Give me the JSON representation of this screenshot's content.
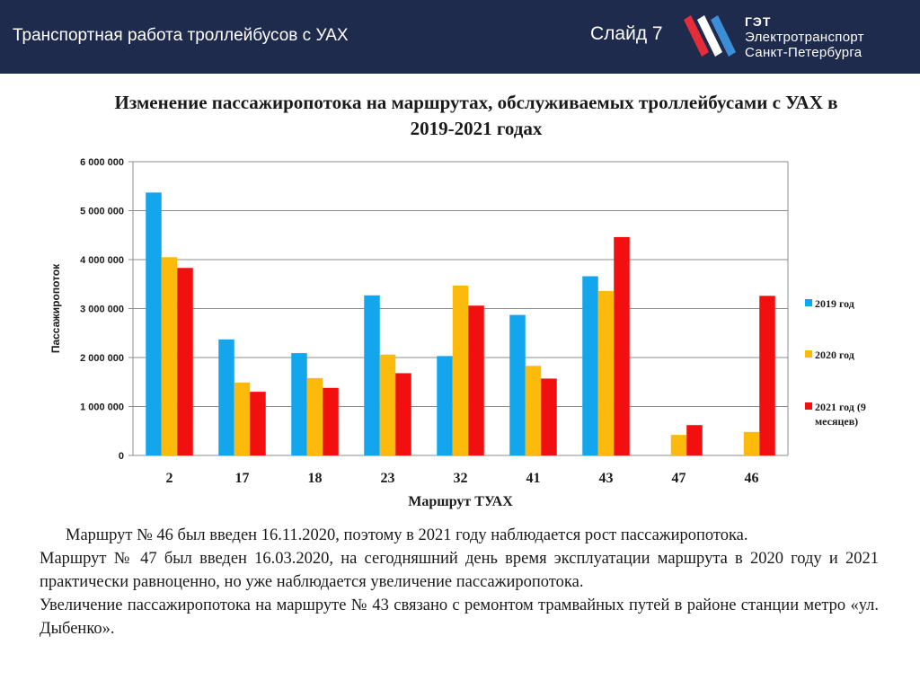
{
  "header": {
    "title": "Транспортная работа троллейбусов с УАХ",
    "slide_label": "Слайд 7",
    "logo": {
      "line1": "ГЭТ",
      "line2": "Электротранспорт",
      "line3": "Санкт-Петербурга",
      "colors": [
        "#e52d3a",
        "#ffffff",
        "#3c8fd6"
      ]
    },
    "background": "#1f2b4d"
  },
  "chart_data": {
    "type": "bar",
    "title": "Изменение пассажиропотока на маршрутах, обслуживаемых троллейбусами с УАХ в 2019-2021 годах",
    "xlabel": "Маршрут ТУАХ",
    "ylabel": "Пассажиропоток",
    "categories": [
      "2",
      "17",
      "18",
      "23",
      "32",
      "41",
      "43",
      "47",
      "46"
    ],
    "ylim": [
      0,
      6000000
    ],
    "yticks": [
      0,
      1000000,
      2000000,
      3000000,
      4000000,
      5000000,
      6000000
    ],
    "ytick_labels": [
      "0",
      "1 000 000",
      "2 000 000",
      "3 000 000",
      "4 000 000",
      "5 000 000",
      "6 000 000"
    ],
    "grid": true,
    "legend_position": "right",
    "series": [
      {
        "name": "2019 год",
        "color": "#13a6ec",
        "values": [
          5370000,
          2370000,
          2090000,
          3270000,
          2030000,
          2870000,
          3660000,
          0,
          0
        ]
      },
      {
        "name": "2020 год",
        "color": "#fcbb0c",
        "values": [
          4050000,
          1490000,
          1580000,
          2060000,
          3470000,
          1830000,
          3360000,
          420000,
          480000
        ]
      },
      {
        "name": "2021 год (9 месяцев)",
        "name_lines": [
          "2021 год (9",
          "месяцев)"
        ],
        "color": "#f20f10",
        "values": [
          3830000,
          1300000,
          1380000,
          1680000,
          3060000,
          1570000,
          4460000,
          620000,
          3260000
        ]
      }
    ]
  },
  "body": {
    "p1": "Маршрут № 46 был введен 16.11.2020, поэтому в 2021 году наблюдается рост пассажиропотока.",
    "p2": "Маршрут № 47 был введен 16.03.2020, на сегодняшний день время эксплуатации маршрута в 2020 году и 2021 практически равноценно, но уже наблюдается увеличение пассажиропотока.",
    "p3": "Увеличение пассажиропотока на маршруте № 43 связано  с ремонтом трамвайных путей в районе станции метро «ул. Дыбенко»."
  }
}
